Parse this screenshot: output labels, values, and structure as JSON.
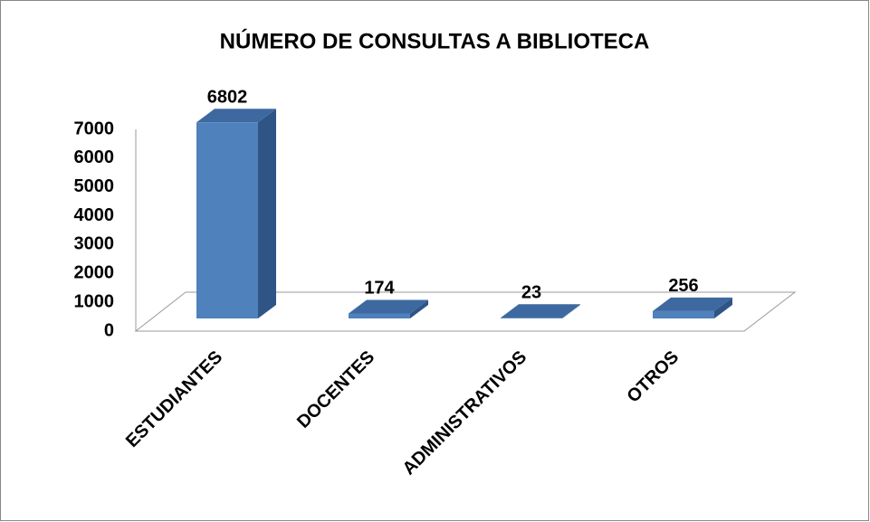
{
  "chart_data": {
    "type": "bar3d",
    "title": "NÚMERO DE CONSULTAS A BIBLIOTECA",
    "categories": [
      "ESTUDIANTES",
      "DOCENTES",
      "ADMINISTRATIVOS",
      "OTROS"
    ],
    "values": [
      6802,
      174,
      23,
      256
    ],
    "color": "#4f81bd",
    "ylim": [
      0,
      7000
    ],
    "yticks": [
      0,
      1000,
      2000,
      3000,
      4000,
      5000,
      6000,
      7000
    ]
  }
}
